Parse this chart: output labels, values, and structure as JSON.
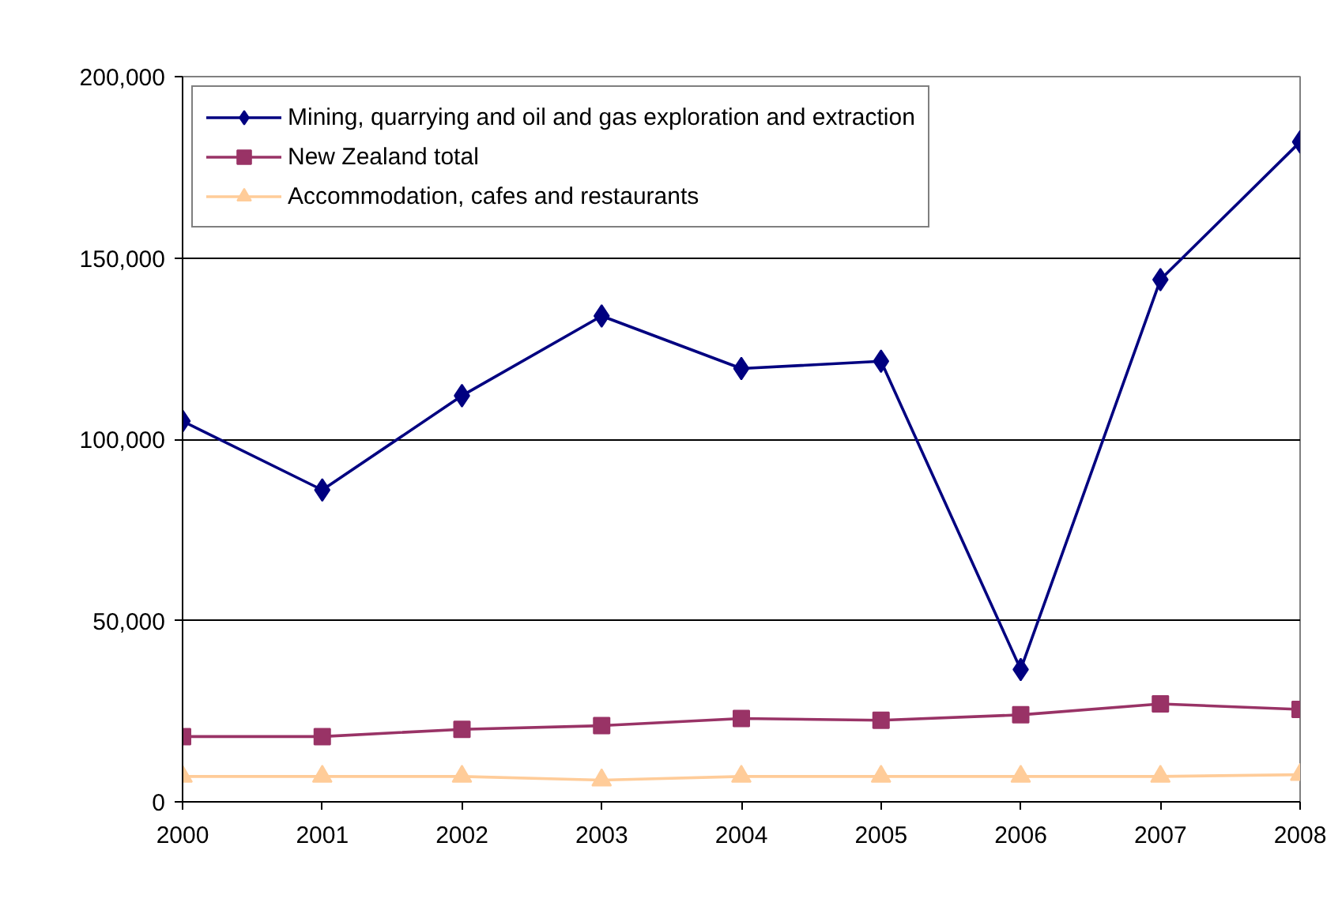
{
  "chart_data": {
    "type": "line",
    "categories": [
      "2000",
      "2001",
      "2002",
      "2003",
      "2004",
      "2005",
      "2006",
      "2007",
      "2008"
    ],
    "series": [
      {
        "name": "Mining, quarrying and oil and gas exploration and extraction",
        "color": "#000080",
        "marker": "diamond",
        "values": [
          105000,
          86000,
          112000,
          134000,
          119500,
          121500,
          36500,
          144000,
          182000
        ]
      },
      {
        "name": "New Zealand total",
        "color": "#993366",
        "marker": "square",
        "values": [
          18000,
          18000,
          20000,
          21000,
          23000,
          22500,
          24000,
          27000,
          25500
        ]
      },
      {
        "name": "Accommodation, cafes and restaurants",
        "color": "#ffcc99",
        "marker": "triangle",
        "values": [
          7000,
          7000,
          7000,
          6000,
          7000,
          7000,
          7000,
          7000,
          7500
        ]
      }
    ],
    "ylim": [
      0,
      200000
    ],
    "yticks": [
      0,
      {
        "value": 50000,
        "label": "50,000"
      },
      {
        "value": 100000,
        "label": "100,000"
      },
      {
        "value": 150000,
        "label": "150,000"
      },
      {
        "value": 200000,
        "label": "200,000"
      }
    ],
    "grid": "y",
    "legend": "top left",
    "line_style": "solid"
  }
}
